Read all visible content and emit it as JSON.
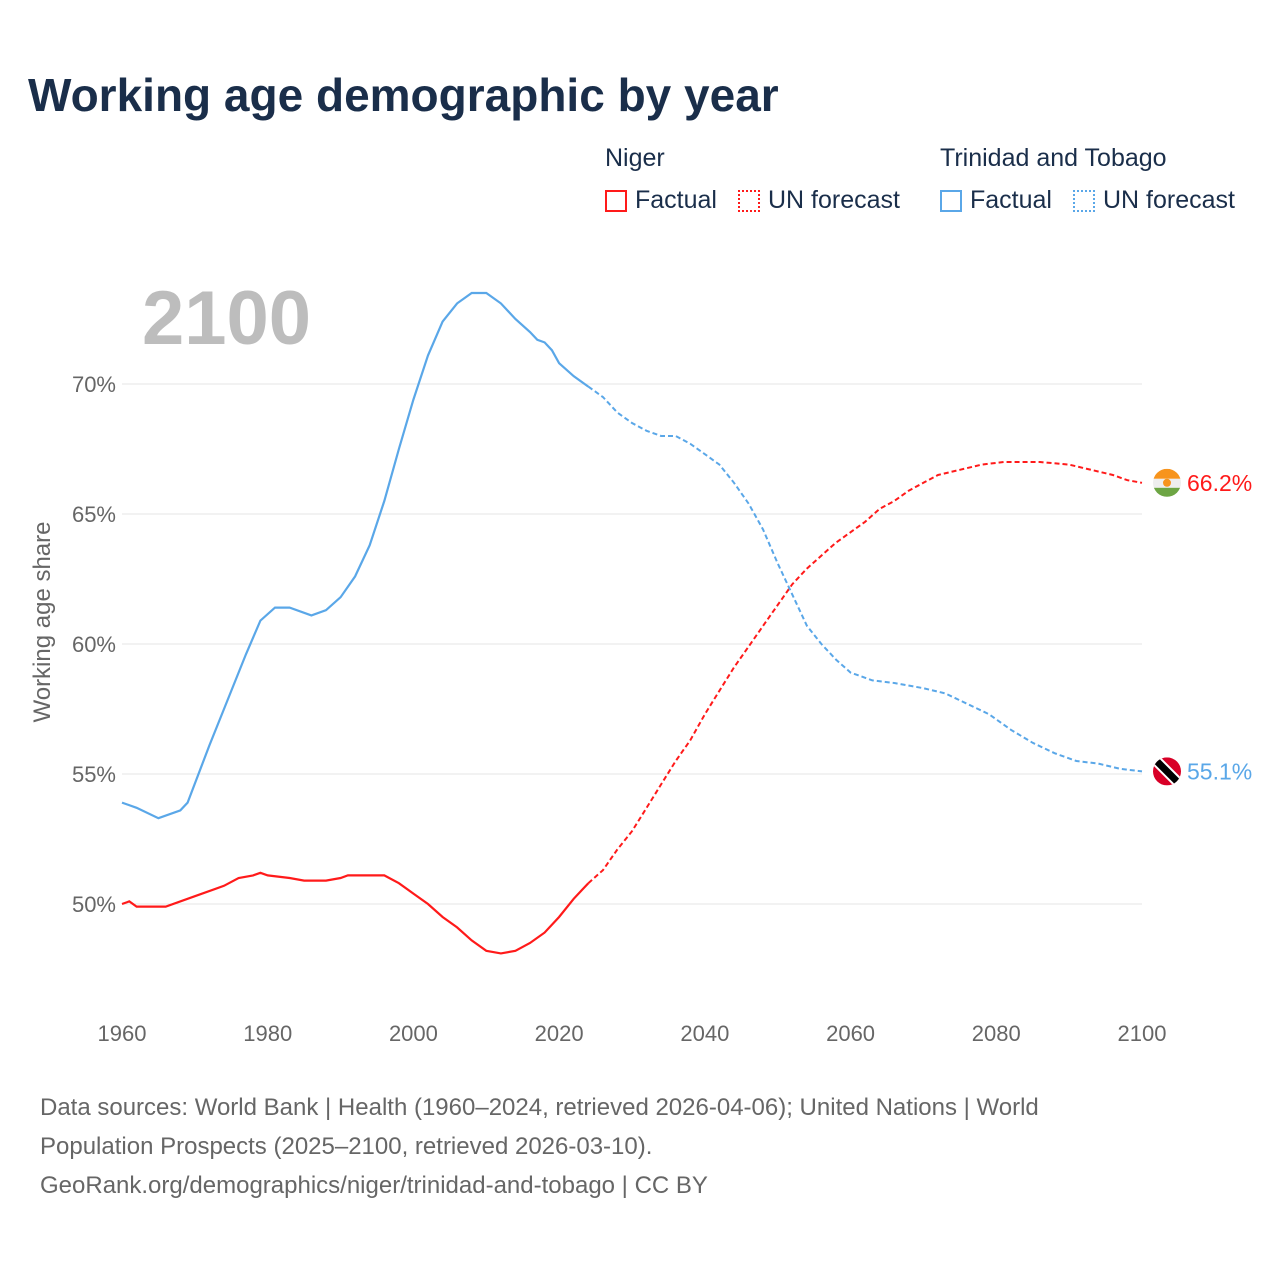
{
  "title": "Working age demographic by year",
  "legend": {
    "groups": [
      {
        "name": "Niger",
        "factual": "Factual",
        "forecast": "UN forecast",
        "color": "#ff1a1a"
      },
      {
        "name": "Trinidad and Tobago",
        "factual": "Factual",
        "forecast": "UN forecast",
        "color": "#5aa7e8"
      }
    ]
  },
  "year_label": "2100",
  "footer": {
    "line1": "Data sources: World Bank | Health (1960–2024, retrieved 2026-04-06); United Nations | World",
    "line2": "Population Prospects (2025–2100, retrieved 2026-03-10).",
    "line3": "GeoRank.org/demographics/niger/trinidad-and-tobago | CC BY"
  },
  "chart_data": {
    "type": "line",
    "title": "Working age demographic by year",
    "xlabel": "",
    "ylabel": "Working age share",
    "xlim": [
      1960,
      2100
    ],
    "ylim": [
      46.1,
      74.5
    ],
    "xticks": [
      1960,
      1980,
      2000,
      2020,
      2040,
      2060,
      2080,
      2100
    ],
    "xtick_labels": [
      "1960",
      "1980",
      "2000",
      "2020",
      "2040",
      "2060",
      "2080",
      "2100"
    ],
    "yticks": [
      50,
      55,
      60,
      65,
      70
    ],
    "ytick_labels": [
      "50%",
      "55%",
      "60%",
      "65%",
      "70%"
    ],
    "factual_until": 2024,
    "grid": true,
    "series": [
      {
        "name": "Niger",
        "color": "#ff1a1a",
        "end_label": "66.2%",
        "flag": "niger",
        "x": [
          1960,
          1961,
          1962,
          1966,
          1970,
          1974,
          1976,
          1978,
          1979,
          1980,
          1983,
          1985,
          1988,
          1990,
          1991,
          1996,
          1998,
          2000,
          2002,
          2004,
          2006,
          2008,
          2010,
          2012,
          2014,
          2016,
          2018,
          2020,
          2022,
          2024,
          2026,
          2028,
          2030,
          2032,
          2034,
          2036,
          2038,
          2040,
          2042,
          2044,
          2046,
          2048,
          2050,
          2052,
          2054,
          2056,
          2058,
          2060,
          2062,
          2064,
          2066,
          2068,
          2070,
          2072,
          2075,
          2078,
          2081,
          2086,
          2090,
          2093,
          2096,
          2098,
          2100
        ],
        "y": [
          50.0,
          50.1,
          49.9,
          49.9,
          50.3,
          50.7,
          51.0,
          51.1,
          51.2,
          51.1,
          51.0,
          50.9,
          50.9,
          51.0,
          51.1,
          51.1,
          50.8,
          50.4,
          50.0,
          49.5,
          49.1,
          48.6,
          48.2,
          48.1,
          48.2,
          48.5,
          48.9,
          49.5,
          50.2,
          50.8,
          51.3,
          52.1,
          52.8,
          53.7,
          54.6,
          55.5,
          56.3,
          57.3,
          58.2,
          59.1,
          59.9,
          60.7,
          61.5,
          62.3,
          62.9,
          63.4,
          63.9,
          64.3,
          64.7,
          65.2,
          65.5,
          65.9,
          66.2,
          66.5,
          66.7,
          66.9,
          67.0,
          67.0,
          66.9,
          66.7,
          66.5,
          66.3,
          66.2
        ]
      },
      {
        "name": "Trinidad and Tobago",
        "color": "#5aa7e8",
        "end_label": "55.1%",
        "flag": "trinidad",
        "x": [
          1960,
          1962,
          1965,
          1968,
          1969,
          1972,
          1974,
          1977,
          1979,
          1981,
          1983,
          1986,
          1988,
          1990,
          1992,
          1994,
          1996,
          1998,
          2000,
          2002,
          2004,
          2006,
          2008,
          2009,
          2010,
          2012,
          2014,
          2016,
          2017,
          2018,
          2019,
          2020,
          2022,
          2024,
          2026,
          2028,
          2030,
          2032,
          2034,
          2036,
          2038,
          2040,
          2042,
          2044,
          2046,
          2048,
          2050,
          2052,
          2054,
          2056,
          2058,
          2060,
          2063,
          2066,
          2070,
          2073,
          2076,
          2079,
          2082,
          2085,
          2088,
          2091,
          2094,
          2097,
          2100
        ],
        "y": [
          53.9,
          53.7,
          53.3,
          53.6,
          53.9,
          56.1,
          57.5,
          59.6,
          60.9,
          61.4,
          61.4,
          61.1,
          61.3,
          61.8,
          62.6,
          63.8,
          65.5,
          67.5,
          69.4,
          71.1,
          72.4,
          73.1,
          73.5,
          73.5,
          73.5,
          73.1,
          72.5,
          72.0,
          71.7,
          71.6,
          71.3,
          70.8,
          70.3,
          69.9,
          69.5,
          68.9,
          68.5,
          68.2,
          68.0,
          68.0,
          67.7,
          67.3,
          66.9,
          66.2,
          65.4,
          64.4,
          63.1,
          61.9,
          60.7,
          60.0,
          59.4,
          58.9,
          58.6,
          58.5,
          58.3,
          58.1,
          57.7,
          57.3,
          56.7,
          56.2,
          55.8,
          55.5,
          55.4,
          55.2,
          55.1
        ]
      }
    ]
  }
}
